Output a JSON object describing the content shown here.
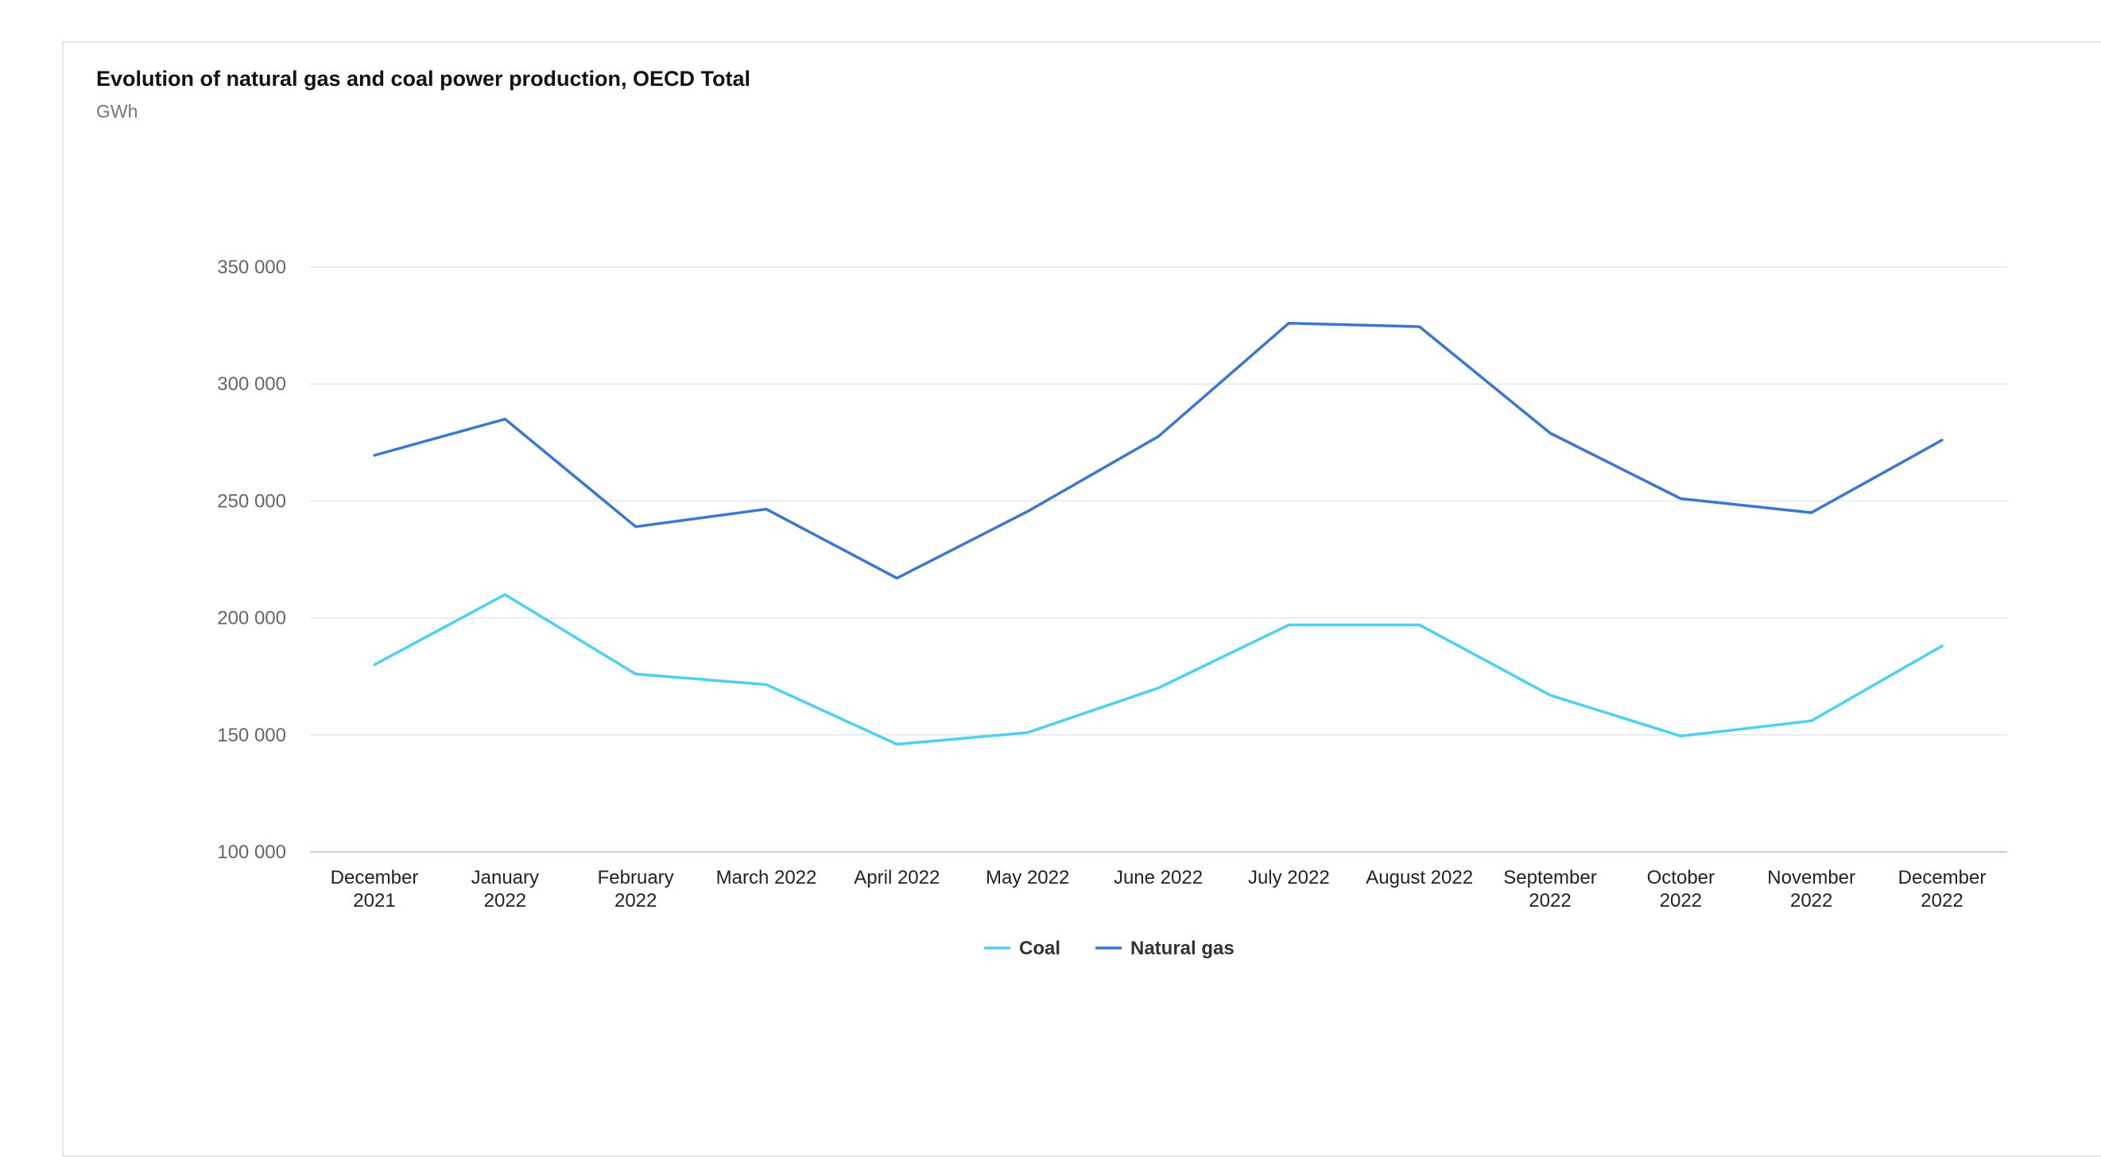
{
  "chart_data": {
    "type": "line",
    "title": "Evolution of natural gas and coal power production, OECD Total",
    "subtitle": "GWh",
    "xlabel": "",
    "ylabel": "",
    "categories": [
      [
        "December",
        "2021"
      ],
      [
        "January",
        "2022"
      ],
      [
        "February",
        "2022"
      ],
      [
        "March 2022"
      ],
      [
        "April 2022"
      ],
      [
        "May 2022"
      ],
      [
        "June 2022"
      ],
      [
        "July 2022"
      ],
      [
        "August 2022"
      ],
      [
        "September",
        "2022"
      ],
      [
        "October",
        "2022"
      ],
      [
        "November",
        "2022"
      ],
      [
        "December",
        "2022"
      ]
    ],
    "ylim": [
      100000,
      350000
    ],
    "yticks": [
      100000,
      150000,
      200000,
      250000,
      300000,
      350000
    ],
    "ytick_labels": [
      "100 000",
      "150 000",
      "200 000",
      "250 000",
      "300 000",
      "350 000"
    ],
    "grid": true,
    "legend_position": "bottom-center",
    "series": [
      {
        "name": "Coal",
        "color": "#4dd0f2",
        "values": [
          180000,
          210000,
          176000,
          171500,
          146000,
          151000,
          170000,
          197000,
          197000,
          167000,
          149500,
          156000,
          188000
        ]
      },
      {
        "name": "Natural gas",
        "color": "#3a77d1",
        "values": [
          269500,
          285000,
          239000,
          246500,
          217000,
          245500,
          277500,
          326000,
          324500,
          279000,
          251000,
          245000,
          276000
        ]
      }
    ]
  }
}
